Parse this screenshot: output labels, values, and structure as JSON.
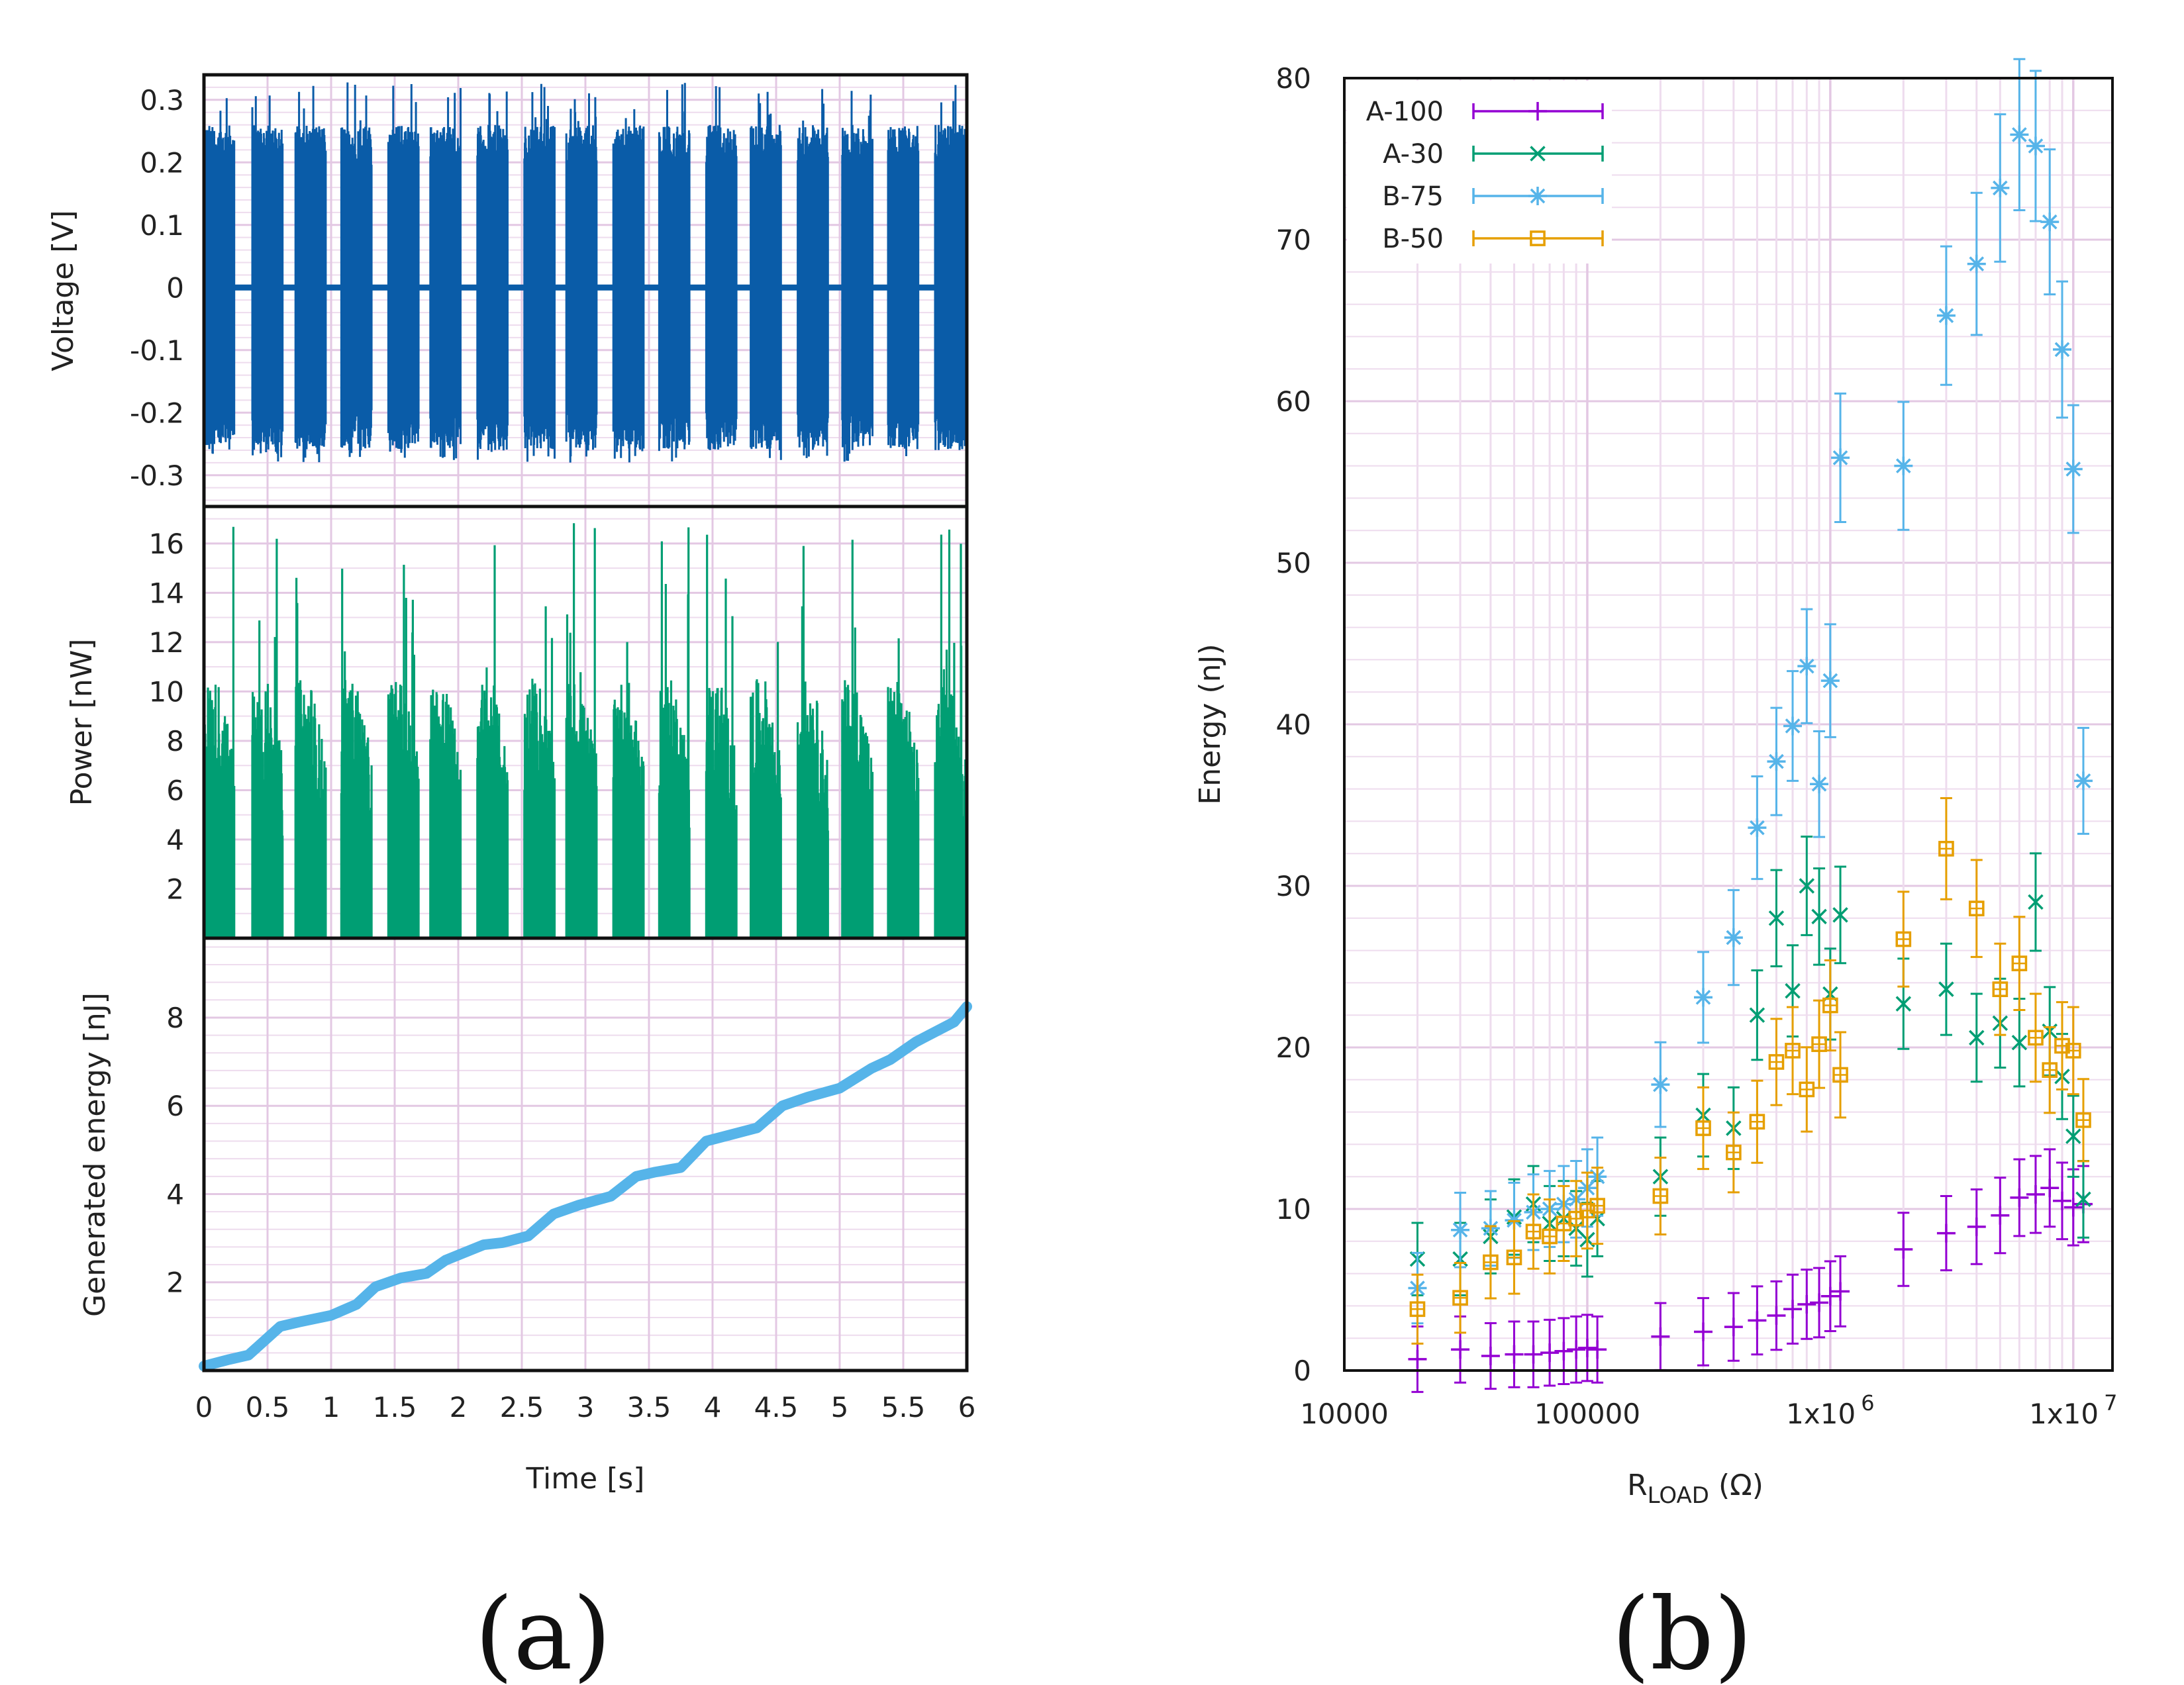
{
  "panel_labels": [
    "(a)",
    "(b)"
  ],
  "chart_data": [
    {
      "type": "line",
      "name_hint": "voltage",
      "ylabel": "Voltage [V]",
      "xlim": [
        0,
        6
      ],
      "ylim": [
        -0.35,
        0.34
      ],
      "yticks": [
        "0.3",
        "0.2",
        "0.1",
        "0",
        "-0.1",
        "-0.2",
        "-0.3"
      ],
      "ytick_values": [
        0.3,
        0.2,
        0.1,
        0,
        -0.1,
        -0.2,
        -0.3
      ],
      "color": "#0a5ca8",
      "burst_starts_s": [
        0.0,
        0.38,
        0.72,
        1.08,
        1.45,
        1.78,
        2.15,
        2.52,
        2.85,
        3.22,
        3.58,
        3.95,
        4.3,
        4.67,
        5.02,
        5.38,
        5.75
      ],
      "burst_length_s": 0.24,
      "burst_peak_abs": 0.26,
      "max_spike": 0.33,
      "min_spike": -0.28,
      "grid": true
    },
    {
      "type": "bar",
      "name_hint": "power",
      "ylabel": "Power [nW]",
      "xlim": [
        0,
        6
      ],
      "ylim": [
        0,
        17.5
      ],
      "yticks": [
        "16",
        "14",
        "12",
        "10",
        "8",
        "6",
        "4",
        "2"
      ],
      "ytick_values": [
        16,
        14,
        12,
        10,
        8,
        6,
        4,
        2
      ],
      "color": "#009e73",
      "burst_starts_s": [
        0.0,
        0.38,
        0.72,
        1.08,
        1.45,
        1.78,
        2.15,
        2.52,
        2.85,
        3.22,
        3.58,
        3.95,
        4.3,
        4.67,
        5.02,
        5.38,
        5.75
      ],
      "burst_length_s": 0.24,
      "typical_peak": 10.5,
      "max_spike": 17,
      "grid": true
    },
    {
      "type": "line",
      "name_hint": "energy",
      "ylabel": "Generated energy [nJ]",
      "xlabel": "Time [s]",
      "xlim": [
        0,
        6
      ],
      "ylim": [
        0,
        9.8
      ],
      "xticks": [
        "0",
        "0.5",
        "1",
        "1.5",
        "2",
        "2.5",
        "3",
        "3.5",
        "4",
        "4.5",
        "5",
        "5.5",
        "6"
      ],
      "xtick_values": [
        0,
        0.5,
        1,
        1.5,
        2,
        2.5,
        3,
        3.5,
        4,
        4.5,
        5,
        5.5,
        6
      ],
      "yticks": [
        "8",
        "6",
        "4",
        "2"
      ],
      "ytick_values": [
        8,
        6,
        4,
        2
      ],
      "color": "#56b4e9",
      "x": [
        0.0,
        0.2,
        0.35,
        0.6,
        0.75,
        1.0,
        1.2,
        1.35,
        1.55,
        1.75,
        1.9,
        2.2,
        2.35,
        2.55,
        2.75,
        2.95,
        3.2,
        3.4,
        3.55,
        3.75,
        3.95,
        4.15,
        4.35,
        4.55,
        4.75,
        5.0,
        5.25,
        5.4,
        5.6,
        5.9,
        6.0
      ],
      "y": [
        0.1,
        0.25,
        0.35,
        1.0,
        1.1,
        1.25,
        1.5,
        1.9,
        2.1,
        2.2,
        2.5,
        2.85,
        2.9,
        3.05,
        3.55,
        3.75,
        3.95,
        4.4,
        4.5,
        4.6,
        5.2,
        5.35,
        5.5,
        6.0,
        6.2,
        6.4,
        6.85,
        7.05,
        7.45,
        7.9,
        8.25
      ],
      "grid": true
    },
    {
      "type": "scatter",
      "name_hint": "energy-vs-load",
      "xlabel": "R",
      "xlabel_sub": "LOAD",
      "xlabel_unit": " (Ω)",
      "ylabel": "Energy (nJ)",
      "xscale": "log",
      "xlim": [
        10000,
        14500000
      ],
      "ylim": [
        0,
        80
      ],
      "xticks": [
        {
          "v": 10000,
          "base": "10000",
          "sup": ""
        },
        {
          "v": 100000,
          "base": "100000",
          "sup": ""
        },
        {
          "v": 1000000,
          "base": "1x10",
          "sup": "6"
        },
        {
          "v": 10000000,
          "base": "1x10",
          "sup": "7"
        }
      ],
      "yticks": [
        "0",
        "10",
        "20",
        "30",
        "40",
        "50",
        "60",
        "70",
        "80"
      ],
      "ytick_values": [
        0,
        10,
        20,
        30,
        40,
        50,
        60,
        70,
        80
      ],
      "legend": "top-left",
      "grid": true,
      "series": [
        {
          "name": "A-100",
          "color": "#9400d3",
          "marker": "plus",
          "x": [
            20000,
            30000,
            40000,
            50000,
            60000,
            70000,
            80000,
            90000,
            100000,
            110000,
            200000,
            300000,
            400000,
            500000,
            600000,
            700000,
            800000,
            900000,
            1000000,
            1100000,
            2000000,
            3000000,
            4000000,
            5000000,
            6000000,
            7000000,
            8000000,
            9000000,
            10000000,
            11000000
          ],
          "y": [
            0.7,
            1.3,
            0.9,
            1.0,
            1.0,
            1.1,
            1.2,
            1.3,
            1.4,
            1.3,
            2.1,
            2.4,
            2.7,
            3.1,
            3.4,
            3.8,
            4.1,
            4.2,
            4.6,
            4.9,
            7.5,
            8.5,
            8.9,
            9.6,
            10.7,
            10.9,
            11.3,
            10.5,
            10.1,
            10.3
          ]
        },
        {
          "name": "A-30",
          "color": "#009e73",
          "marker": "x",
          "x": [
            20000,
            30000,
            40000,
            50000,
            60000,
            70000,
            80000,
            90000,
            100000,
            110000,
            200000,
            300000,
            400000,
            500000,
            600000,
            700000,
            800000,
            900000,
            1000000,
            1100000,
            2000000,
            3000000,
            4000000,
            5000000,
            6000000,
            7000000,
            8000000,
            9000000,
            10000000,
            11000000
          ],
          "y": [
            6.9,
            6.9,
            8.3,
            9.5,
            10.3,
            9.1,
            9.4,
            8.8,
            8.1,
            9.4,
            12.0,
            15.8,
            15.0,
            22.0,
            28.0,
            23.5,
            30.0,
            28.1,
            23.3,
            28.2,
            22.7,
            23.6,
            20.6,
            21.5,
            20.3,
            29.0,
            21.0,
            18.2,
            14.5,
            10.6
          ]
        },
        {
          "name": "B-75",
          "color": "#56b4e9",
          "marker": "star",
          "x": [
            20000,
            30000,
            40000,
            50000,
            60000,
            70000,
            80000,
            90000,
            100000,
            110000,
            200000,
            300000,
            400000,
            500000,
            600000,
            700000,
            800000,
            900000,
            1000000,
            1100000,
            2000000,
            3000000,
            4000000,
            5000000,
            6000000,
            7000000,
            8000000,
            9000000,
            10000000,
            11000000
          ],
          "y": [
            5.1,
            8.7,
            8.8,
            9.3,
            9.8,
            10.0,
            10.3,
            10.6,
            11.3,
            12.0,
            17.7,
            23.1,
            26.8,
            33.6,
            37.7,
            39.9,
            43.6,
            36.3,
            42.7,
            56.5,
            56.0,
            65.3,
            68.5,
            73.2,
            76.5,
            75.8,
            71.1,
            63.2,
            55.8,
            36.5
          ]
        },
        {
          "name": "B-50",
          "color": "#e69f00",
          "marker": "square",
          "x": [
            20000,
            30000,
            40000,
            50000,
            60000,
            70000,
            80000,
            90000,
            100000,
            110000,
            200000,
            300000,
            400000,
            500000,
            600000,
            700000,
            800000,
            900000,
            1000000,
            1100000,
            2000000,
            3000000,
            4000000,
            5000000,
            6000000,
            7000000,
            8000000,
            9000000,
            10000000,
            11000000
          ],
          "y": [
            3.8,
            4.5,
            6.7,
            7.0,
            8.6,
            8.3,
            9.1,
            9.4,
            9.9,
            10.2,
            10.8,
            15.0,
            13.5,
            15.4,
            19.1,
            19.8,
            17.4,
            20.2,
            22.6,
            18.3,
            26.7,
            32.3,
            28.6,
            23.6,
            25.2,
            20.6,
            18.6,
            20.1,
            19.8,
            15.5
          ]
        }
      ]
    }
  ]
}
